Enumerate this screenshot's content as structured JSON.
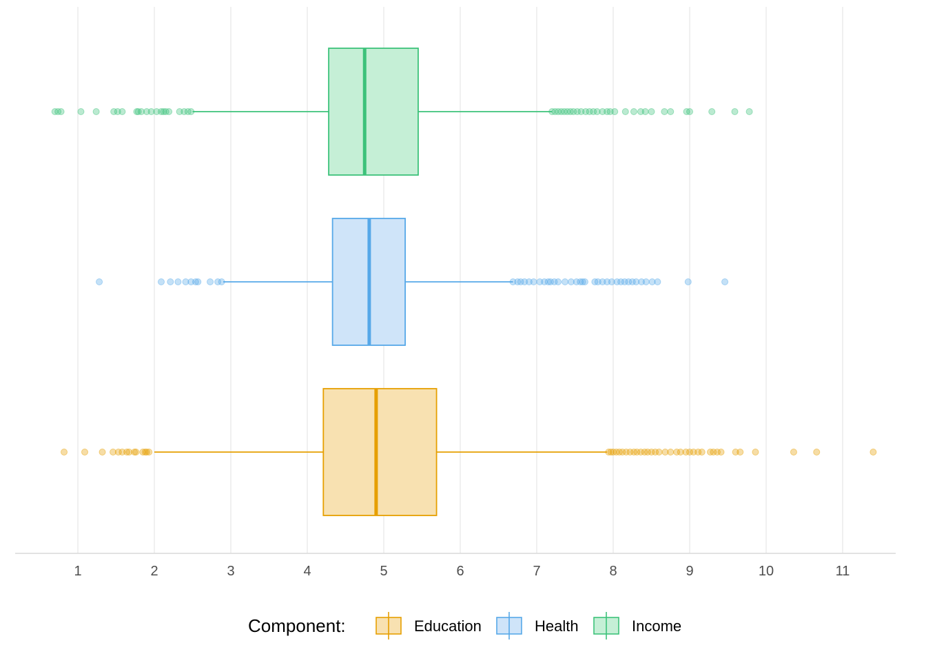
{
  "chart_data": {
    "type": "boxplot",
    "orientation": "horizontal",
    "x_ticks": [
      1,
      2,
      3,
      4,
      5,
      6,
      7,
      8,
      9,
      10,
      11
    ],
    "xlim": [
      0.17,
      11.7
    ],
    "grid": "vertical",
    "legend": {
      "title": "Component:",
      "position": "bottom",
      "entries": [
        "Education",
        "Health",
        "Income"
      ]
    },
    "series": [
      {
        "name": "Education",
        "color": "#E69F00",
        "fill": "#F8E1B1",
        "whisker_low": 2.0,
        "q1": 4.21,
        "median": 4.9,
        "q3": 5.69,
        "whisker_high": 7.92,
        "outliers": [
          0.82,
          1.09,
          1.32,
          1.46,
          1.53,
          1.58,
          1.64,
          1.67,
          1.74,
          1.76,
          1.85,
          1.88,
          1.9,
          1.93,
          7.94,
          7.97,
          8.0,
          8.04,
          8.08,
          8.12,
          8.17,
          8.22,
          8.27,
          8.31,
          8.36,
          8.41,
          8.45,
          8.5,
          8.55,
          8.6,
          8.68,
          8.75,
          8.83,
          8.88,
          8.95,
          9.0,
          9.05,
          9.11,
          9.16,
          9.27,
          9.31,
          9.36,
          9.41,
          9.6,
          9.66,
          9.86,
          10.36,
          10.66,
          11.4
        ]
      },
      {
        "name": "Health",
        "color": "#56A8E8",
        "fill": "#CFE4F9",
        "whisker_low": 2.9,
        "q1": 4.33,
        "median": 4.81,
        "q3": 5.28,
        "whisker_high": 6.69,
        "outliers": [
          1.28,
          2.09,
          2.21,
          2.31,
          2.41,
          2.48,
          2.54,
          2.57,
          2.73,
          2.83,
          2.88,
          6.69,
          6.75,
          6.79,
          6.84,
          6.9,
          6.96,
          7.04,
          7.1,
          7.15,
          7.18,
          7.23,
          7.28,
          7.37,
          7.45,
          7.52,
          7.57,
          7.6,
          7.63,
          7.76,
          7.8,
          7.86,
          7.92,
          7.98,
          8.05,
          8.1,
          8.15,
          8.2,
          8.25,
          8.3,
          8.37,
          8.43,
          8.51,
          8.58,
          8.98,
          9.46
        ]
      },
      {
        "name": "Income",
        "color": "#3CC27A",
        "fill": "#C5EFD6",
        "whisker_low": 2.5,
        "q1": 4.28,
        "median": 4.75,
        "q3": 5.45,
        "whisker_high": 7.2,
        "outliers": [
          0.7,
          0.74,
          0.78,
          1.04,
          1.24,
          1.47,
          1.52,
          1.58,
          1.77,
          1.79,
          1.83,
          1.9,
          1.96,
          2.03,
          2.09,
          2.12,
          2.15,
          2.19,
          2.33,
          2.39,
          2.44,
          2.48,
          7.2,
          7.24,
          7.28,
          7.32,
          7.36,
          7.4,
          7.44,
          7.48,
          7.53,
          7.58,
          7.64,
          7.69,
          7.74,
          7.79,
          7.86,
          7.92,
          7.96,
          8.02,
          8.16,
          8.27,
          8.36,
          8.42,
          8.5,
          8.67,
          8.75,
          8.96,
          9.0,
          9.29,
          9.59,
          9.78
        ]
      }
    ]
  }
}
